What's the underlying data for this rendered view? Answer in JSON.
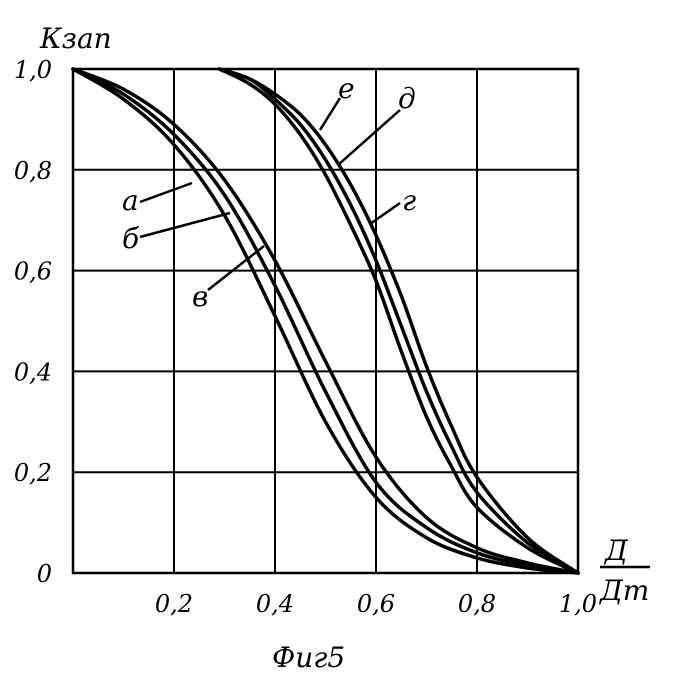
{
  "chart_data": {
    "type": "line",
    "ylabel": "Кзап",
    "xlabel_numerator": "Д",
    "xlabel_denominator": "Дт",
    "caption": "Фиг5",
    "xlim": [
      0,
      1.0
    ],
    "ylim": [
      0,
      1.0
    ],
    "grid": true,
    "x_ticks": [
      "0,2",
      "0,4",
      "0,6",
      "0,8",
      "1,0"
    ],
    "y_ticks": [
      "0",
      "0,2",
      "0,4",
      "0,6",
      "0,8",
      "1,0"
    ],
    "series": [
      {
        "name": "а",
        "x": [
          0,
          0.1,
          0.2,
          0.3,
          0.4,
          0.5,
          0.6,
          0.7,
          0.8,
          0.9,
          1.0
        ],
        "y": [
          1.0,
          0.94,
          0.85,
          0.71,
          0.51,
          0.3,
          0.15,
          0.07,
          0.03,
          0.01,
          0
        ]
      },
      {
        "name": "б",
        "x": [
          0,
          0.1,
          0.2,
          0.3,
          0.4,
          0.5,
          0.6,
          0.7,
          0.8,
          0.9,
          1.0
        ],
        "y": [
          1.0,
          0.95,
          0.87,
          0.75,
          0.57,
          0.36,
          0.18,
          0.09,
          0.04,
          0.015,
          0
        ]
      },
      {
        "name": "в",
        "x": [
          0,
          0.1,
          0.2,
          0.3,
          0.4,
          0.5,
          0.6,
          0.7,
          0.8,
          0.9,
          1.0
        ],
        "y": [
          1.0,
          0.96,
          0.89,
          0.78,
          0.62,
          0.42,
          0.23,
          0.11,
          0.05,
          0.02,
          0
        ]
      },
      {
        "name": "г",
        "x": [
          0.29,
          0.35,
          0.4,
          0.45,
          0.5,
          0.55,
          0.6,
          0.65,
          0.7,
          0.75,
          0.8,
          0.9,
          1.0
        ],
        "y": [
          1.0,
          0.97,
          0.93,
          0.87,
          0.79,
          0.69,
          0.58,
          0.44,
          0.31,
          0.21,
          0.13,
          0.05,
          0
        ]
      },
      {
        "name": "д",
        "x": [
          0.29,
          0.35,
          0.4,
          0.45,
          0.5,
          0.55,
          0.6,
          0.65,
          0.7,
          0.75,
          0.8,
          0.9,
          1.0
        ],
        "y": [
          1.0,
          0.98,
          0.94,
          0.89,
          0.82,
          0.73,
          0.62,
          0.49,
          0.36,
          0.25,
          0.16,
          0.06,
          0
        ]
      },
      {
        "name": "е",
        "x": [
          0.29,
          0.35,
          0.4,
          0.45,
          0.5,
          0.55,
          0.6,
          0.65,
          0.7,
          0.75,
          0.8,
          0.9,
          1.0
        ],
        "y": [
          1.0,
          0.98,
          0.95,
          0.91,
          0.85,
          0.77,
          0.67,
          0.55,
          0.41,
          0.29,
          0.19,
          0.07,
          0
        ]
      }
    ]
  }
}
